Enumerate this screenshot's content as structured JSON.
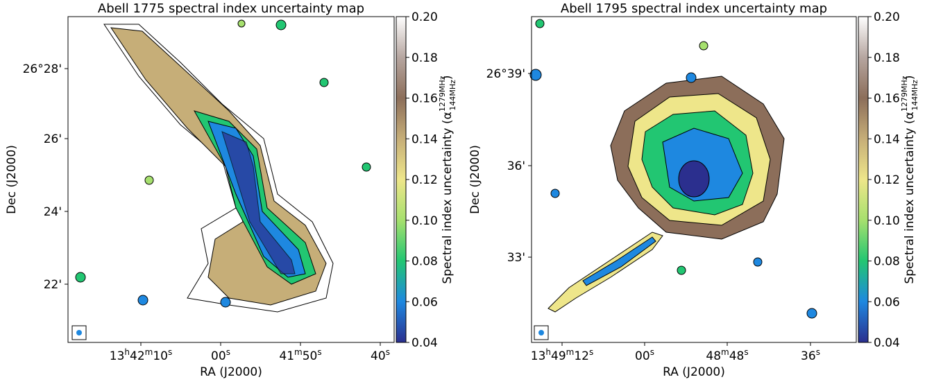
{
  "chart_data": [
    {
      "type": "image",
      "title": "Abell 1775 spectral index uncertainty map",
      "x_label": "RA (J2000)",
      "y_label": "Dec (J2000)",
      "xticks": [
        "13h42m10s",
        "00s",
        "41m50s",
        "40s"
      ],
      "yticks": [
        "26°28'",
        "26'",
        "24'",
        "22'"
      ],
      "colorbar": {
        "label": "Spectral index uncertainty (α",
        "label_sup": "1279MHz",
        "label_sub": "144MHz",
        "label_end": ")",
        "lim": [
          0.04,
          0.2
        ],
        "ticks": [
          {
            "value": 0.2,
            "label": "0.20"
          },
          0.18,
          0.16,
          0.14,
          0.12,
          {
            "value": 0.1,
            "label": "0.10"
          },
          0.08,
          0.06,
          0.04
        ]
      }
    },
    {
      "type": "image",
      "title": "Abell 1795 spectral index uncertainty map",
      "x_label": "RA (J2000)",
      "y_label": "Dec (J2000)",
      "xticks": [
        "13h49m12s",
        "00s",
        "48m48s",
        "36s"
      ],
      "yticks": [
        "26°39'",
        "36'",
        "33'"
      ],
      "colorbar": {
        "label": "Spectral index uncertainty (α",
        "label_sup": "1279MHz",
        "label_sub": "144MHz",
        "label_end": ")",
        "lim": [
          0.04,
          0.2
        ],
        "ticks": [
          {
            "value": 0.2,
            "label": "0.20"
          },
          0.18,
          0.16,
          0.14,
          0.12,
          {
            "value": 0.1,
            "label": "0.10"
          },
          0.08,
          0.06,
          0.04
        ]
      }
    }
  ]
}
